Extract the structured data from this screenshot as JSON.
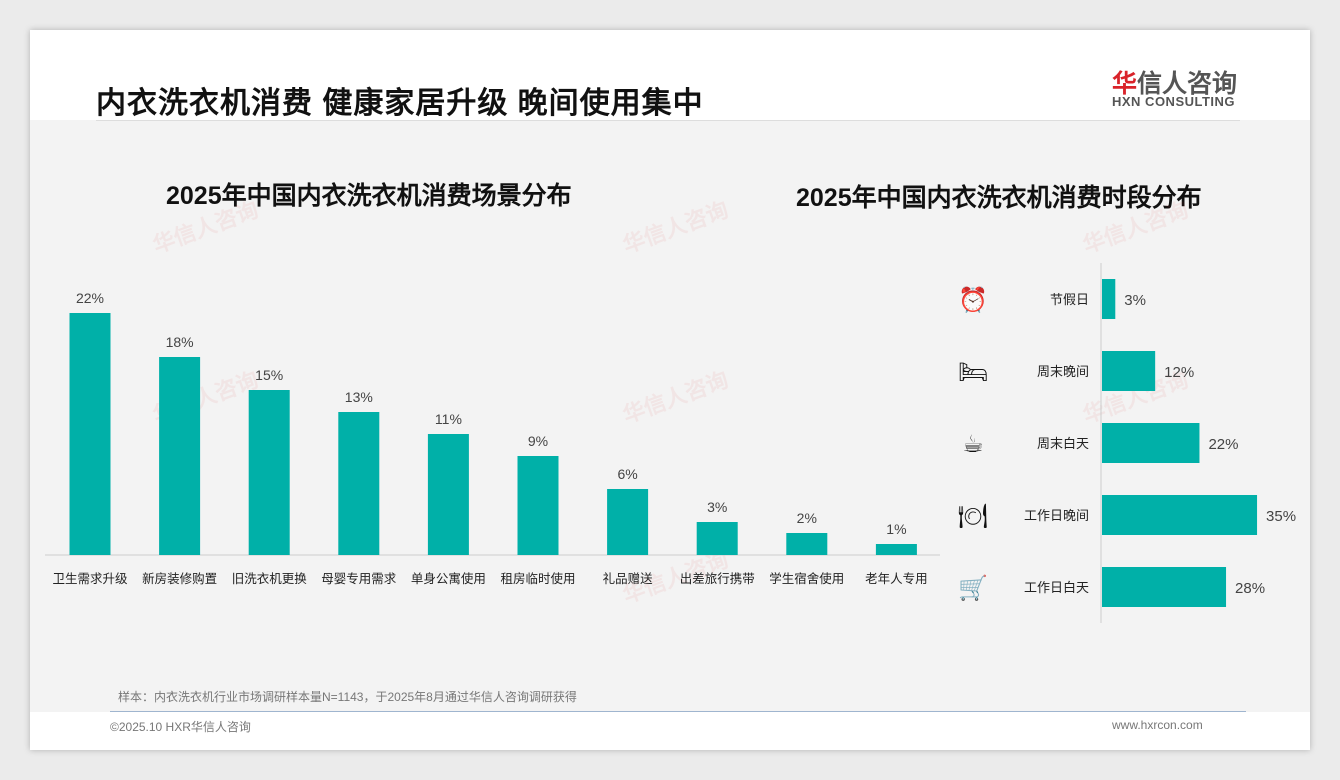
{
  "header": {
    "title": "内衣洗衣机消费 健康家居升级 晚间使用集中",
    "logo_cn_red": "华",
    "logo_cn": "信人咨询",
    "logo_en": "HXN CONSULTING"
  },
  "chart_data": [
    {
      "type": "bar",
      "title": "2025年中国内衣洗衣机消费场景分布",
      "categories": [
        "卫生需求升级",
        "新房装修购置",
        "旧洗衣机更换",
        "母婴专用需求",
        "单身公寓使用",
        "租房临时使用",
        "礼品赠送",
        "出差旅行携带",
        "学生宿舍使用",
        "老年人专用"
      ],
      "values": [
        22,
        18,
        15,
        13,
        11,
        9,
        6,
        3,
        2,
        1
      ],
      "labels": [
        "22%",
        "18%",
        "15%",
        "13%",
        "11%",
        "9%",
        "6%",
        "3%",
        "2%",
        "1%"
      ],
      "unit": "%",
      "color": "#00b0a8"
    },
    {
      "type": "bar",
      "orientation": "horizontal",
      "title": "2025年中国内衣洗衣机消费时段分布",
      "categories": [
        "节假日",
        "周末晚间",
        "周末白天",
        "工作日晚间",
        "工作日白天"
      ],
      "values": [
        3,
        12,
        22,
        35,
        28
      ],
      "labels": [
        "3%",
        "12%",
        "22%",
        "35%",
        "28%"
      ],
      "icons": [
        "alarm-clock-icon",
        "bed-icon",
        "coffee-mug-icon",
        "plate-cutlery-icon",
        "shopping-cart-icon"
      ],
      "unit": "%",
      "color": "#00b0a8"
    }
  ],
  "footer": {
    "note": "样本：内衣洗衣机行业市场调研样本量N=1143，于2025年8月通过华信人咨询调研获得",
    "copyright": "©2025.10 HXR华信人咨询",
    "website": "www.hxrcon.com"
  }
}
